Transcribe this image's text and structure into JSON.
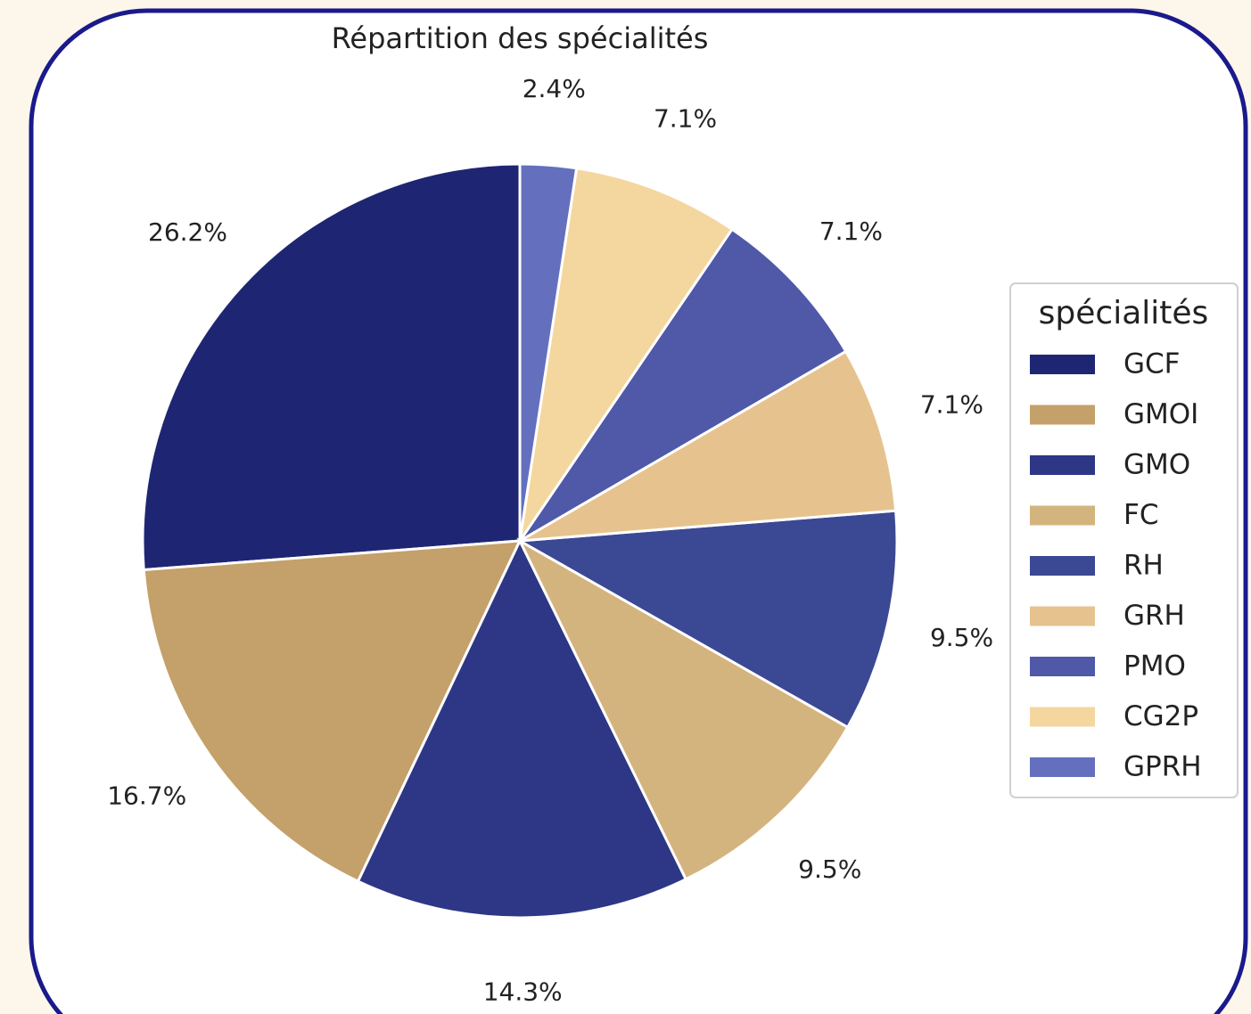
{
  "chart_data": {
    "type": "pie",
    "title": "Répartition des spécialités",
    "legend_title": "spécialités",
    "legend": "right",
    "categories": [
      "GCF",
      "GMOI",
      "GMO",
      "FC",
      "RH",
      "GRH",
      "PMO",
      "CG2P",
      "GPRH"
    ],
    "values": [
      26.2,
      16.7,
      14.3,
      9.5,
      9.5,
      7.1,
      7.1,
      7.1,
      2.4
    ],
    "value_labels": [
      "26.2%",
      "16.7%",
      "14.3%",
      "9.5%",
      "9.5%",
      "7.1%",
      "7.1%",
      "7.1%",
      "2.4%"
    ],
    "colors": [
      "#1e2673",
      "#c4a06a",
      "#2d3786",
      "#d4b47e",
      "#3b4894",
      "#e6c38e",
      "#4f59a8",
      "#f4d69f",
      "#6470bd"
    ],
    "start_angle": 90,
    "counterclockwise": true
  }
}
